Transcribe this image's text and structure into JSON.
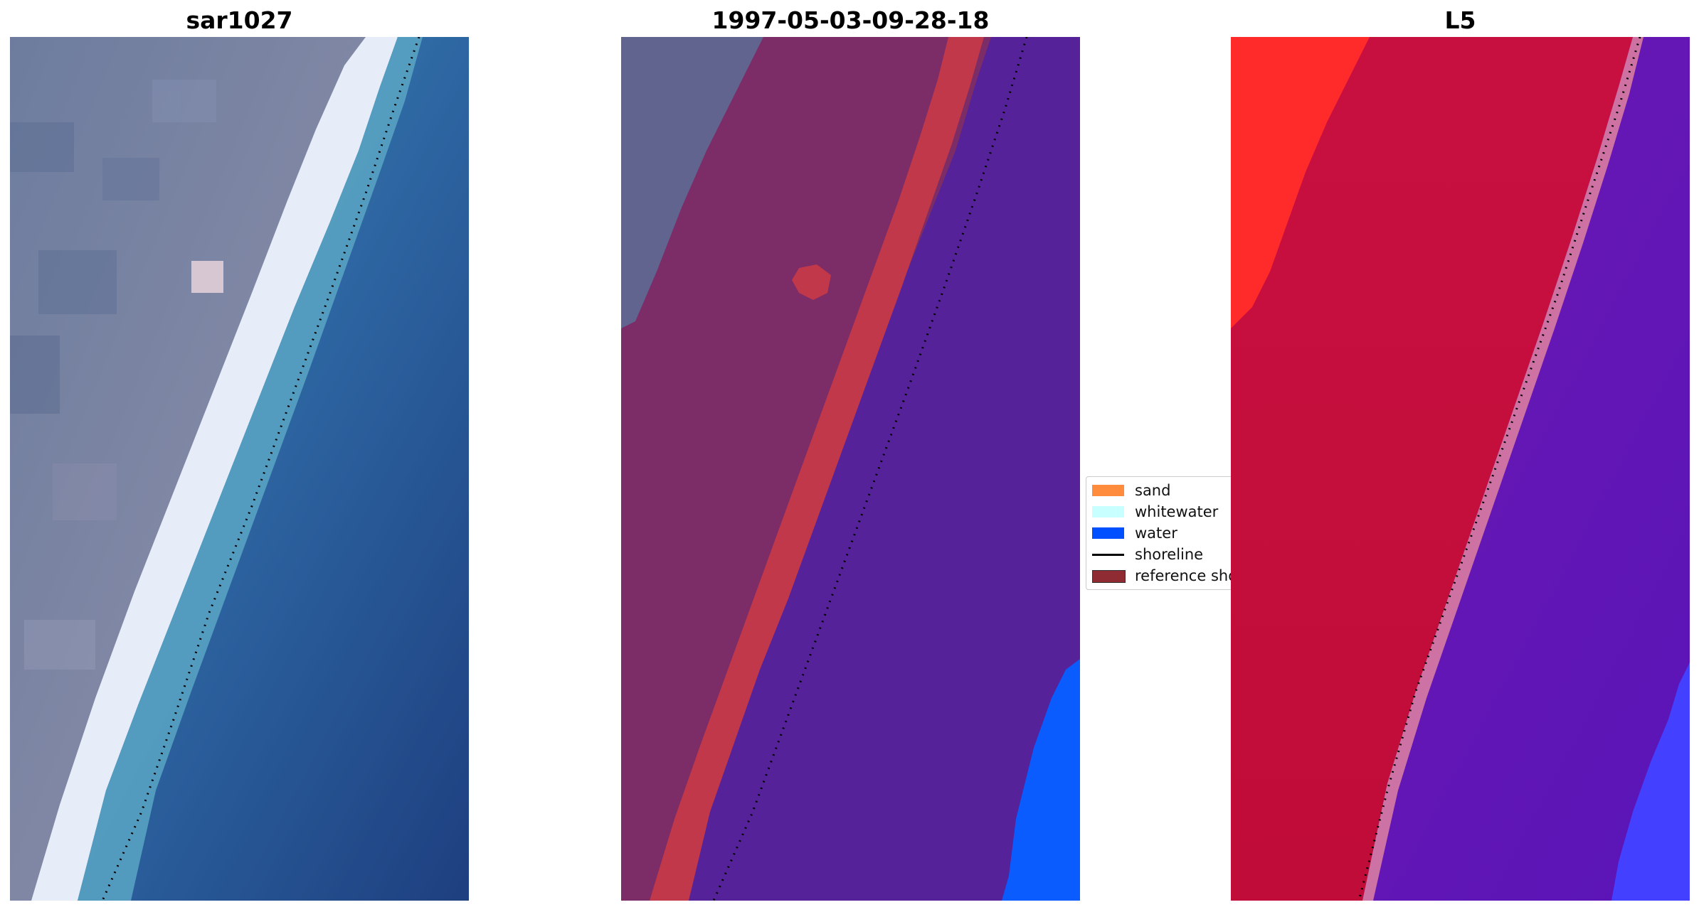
{
  "panels": [
    {
      "title": "sar1027",
      "kind": "rgb-image"
    },
    {
      "title": "1997-05-03-09-28-18",
      "kind": "classified-image"
    },
    {
      "title": "L5",
      "kind": "index-image"
    }
  ],
  "legend": {
    "items": [
      {
        "label": "sand",
        "color": "#ff8c3c",
        "kind": "patch"
      },
      {
        "label": "whitewater",
        "color": "#c8ffff",
        "kind": "patch"
      },
      {
        "label": "water",
        "color": "#0050ff",
        "kind": "patch"
      },
      {
        "label": "shoreline",
        "color": "#000000",
        "kind": "line"
      },
      {
        "label": "reference shoreline",
        "color": "#8e2b33",
        "kind": "patch"
      }
    ]
  },
  "colors": {
    "land": "#7e84a0",
    "beach": "#e8eef8",
    "ocean_near": "#3c84b0",
    "ocean_far": "#1e4a8a",
    "classified_land": "#7c2c66",
    "classified_beach": "#c0384a",
    "classified_water": "#55229a",
    "classified_water_bright": "#0a5cff",
    "index_land": "#c4103c",
    "index_land_high": "#ff2020",
    "index_water": "#6a18a8",
    "index_water_low": "#4440ff",
    "shoreline": "#000000"
  }
}
